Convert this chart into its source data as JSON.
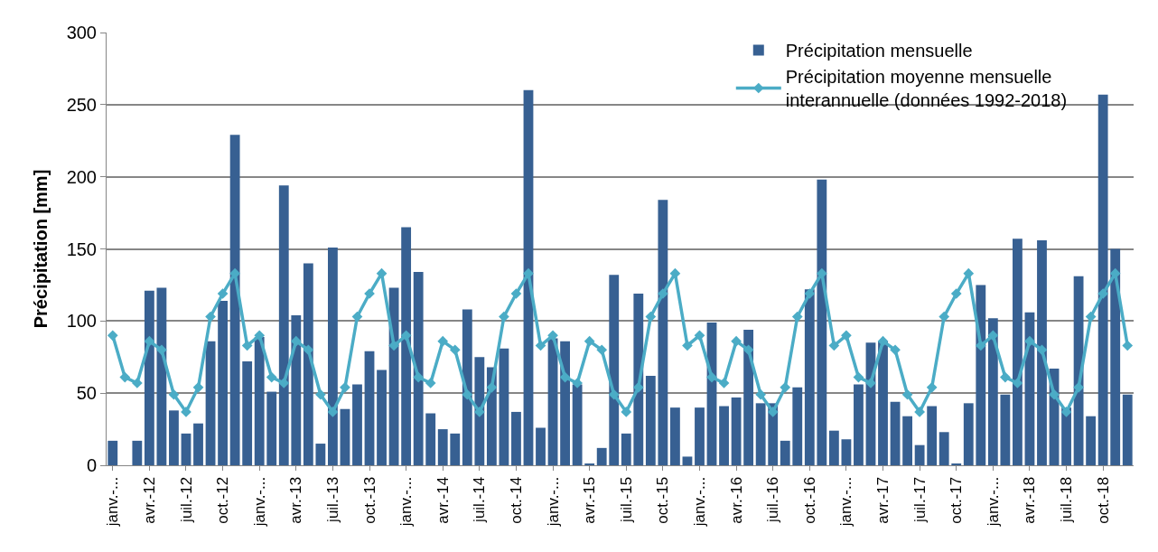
{
  "chart_data": {
    "type": "bar",
    "ylabel": "Précipitation [mm]",
    "categories": [
      "janv.-...",
      null,
      null,
      "avr.-12",
      null,
      null,
      "juil.-12",
      null,
      null,
      "oct.-12",
      null,
      null,
      "janv.-...",
      null,
      null,
      "avr.-13",
      null,
      null,
      "juil.-13",
      null,
      null,
      "oct.-13",
      null,
      null,
      "janv.-...",
      null,
      null,
      "avr.-14",
      null,
      null,
      "juil.-14",
      null,
      null,
      "oct.-14",
      null,
      null,
      "janv.-...",
      null,
      null,
      "avr.-15",
      null,
      null,
      "juil.-15",
      null,
      null,
      "oct.-15",
      null,
      null,
      "janv.-...",
      null,
      null,
      "avr.-16",
      null,
      null,
      "juil.-16",
      null,
      null,
      "oct.-16",
      null,
      null,
      "janv.-...",
      null,
      null,
      "avr.-17",
      null,
      null,
      "juil.-17",
      null,
      null,
      "oct.-17",
      null,
      null,
      "janv.-...",
      null,
      null,
      "avr.-18",
      null,
      null,
      "juil.-18",
      null,
      null,
      "oct.-18",
      null,
      null
    ],
    "series": [
      {
        "name": "Précipitation mensuelle",
        "color": "#376092",
        "values": [
          17,
          0,
          17,
          121,
          123,
          38,
          22,
          29,
          86,
          114,
          229,
          72,
          89,
          51,
          194,
          104,
          140,
          15,
          151,
          39,
          56,
          79,
          66,
          123,
          165,
          134,
          36,
          25,
          22,
          108,
          75,
          68,
          81,
          37,
          260,
          26,
          88,
          86,
          56,
          1,
          12,
          132,
          22,
          119,
          62,
          184,
          40,
          6,
          40,
          99,
          41,
          47,
          94,
          43,
          43,
          17,
          54,
          122,
          198,
          24,
          18,
          56,
          85,
          86,
          44,
          34,
          14,
          41,
          23,
          1,
          43,
          125,
          102,
          49,
          157,
          106,
          156,
          67,
          40,
          131,
          34,
          257,
          150,
          49
        ]
      },
      {
        "name": "Précipitation moyenne mensuelle interannuelle (données 1992-2018)",
        "type": "line",
        "color": "#4bacc6",
        "marker": "diamond",
        "values": [
          90,
          61,
          57,
          86,
          80,
          49,
          37,
          54,
          103,
          119,
          133,
          83,
          90,
          61,
          57,
          86,
          80,
          49,
          37,
          54,
          103,
          119,
          133,
          83,
          90,
          61,
          57,
          86,
          80,
          49,
          37,
          54,
          103,
          119,
          133,
          83,
          90,
          61,
          57,
          86,
          80,
          49,
          37,
          54,
          103,
          119,
          133,
          83,
          90,
          61,
          57,
          86,
          80,
          49,
          37,
          54,
          103,
          119,
          133,
          83,
          90,
          61,
          57,
          86,
          80,
          49,
          37,
          54,
          103,
          119,
          133,
          83,
          90,
          61,
          57,
          86,
          80,
          49,
          37,
          54,
          103,
          119,
          133,
          83
        ]
      }
    ],
    "ylim": [
      0,
      300
    ],
    "yticks": [
      0,
      50,
      100,
      150,
      200,
      250,
      300
    ],
    "grid": "y",
    "legend": "top right"
  }
}
